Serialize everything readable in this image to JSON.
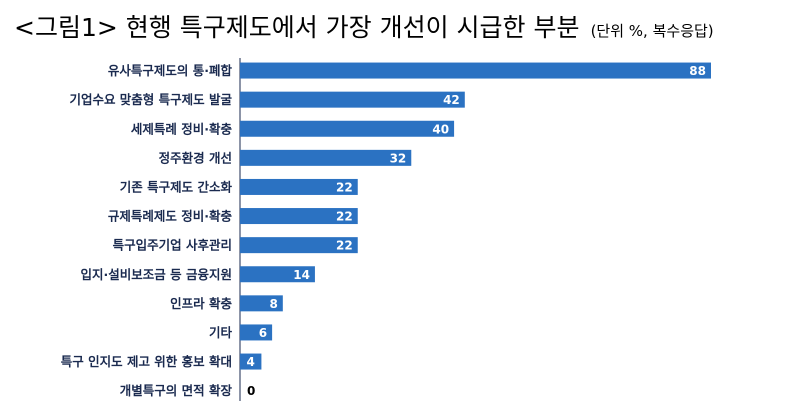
{
  "title": "<그림1> 현행 특구제도에서 가장 개선이 시급한 부분",
  "subtitle": "(단위 %, 복수응답)",
  "colors": {
    "bar": "#2b72c2",
    "axis": "#1a2a4f"
  },
  "chart_data": {
    "type": "bar",
    "orientation": "horizontal",
    "categories": [
      "유사특구제도의 통·폐합",
      "기업수요 맞춤형 특구제도 발굴",
      "세제특례 정비·확충",
      "정주환경 개선",
      "기존 특구제도 간소화",
      "규제특례제도 정비·확충",
      "특구입주기업 사후관리",
      "입지·설비보조금 등 금융지원",
      "인프라 확충",
      "기타",
      "특구 인지도 제고 위한 홍보 확대",
      "개별특구의 면적 확장"
    ],
    "values": [
      88,
      42,
      40,
      32,
      22,
      22,
      22,
      14,
      8,
      6,
      4,
      0
    ],
    "xlim": [
      0,
      100
    ],
    "grid": false,
    "legend": "none"
  }
}
